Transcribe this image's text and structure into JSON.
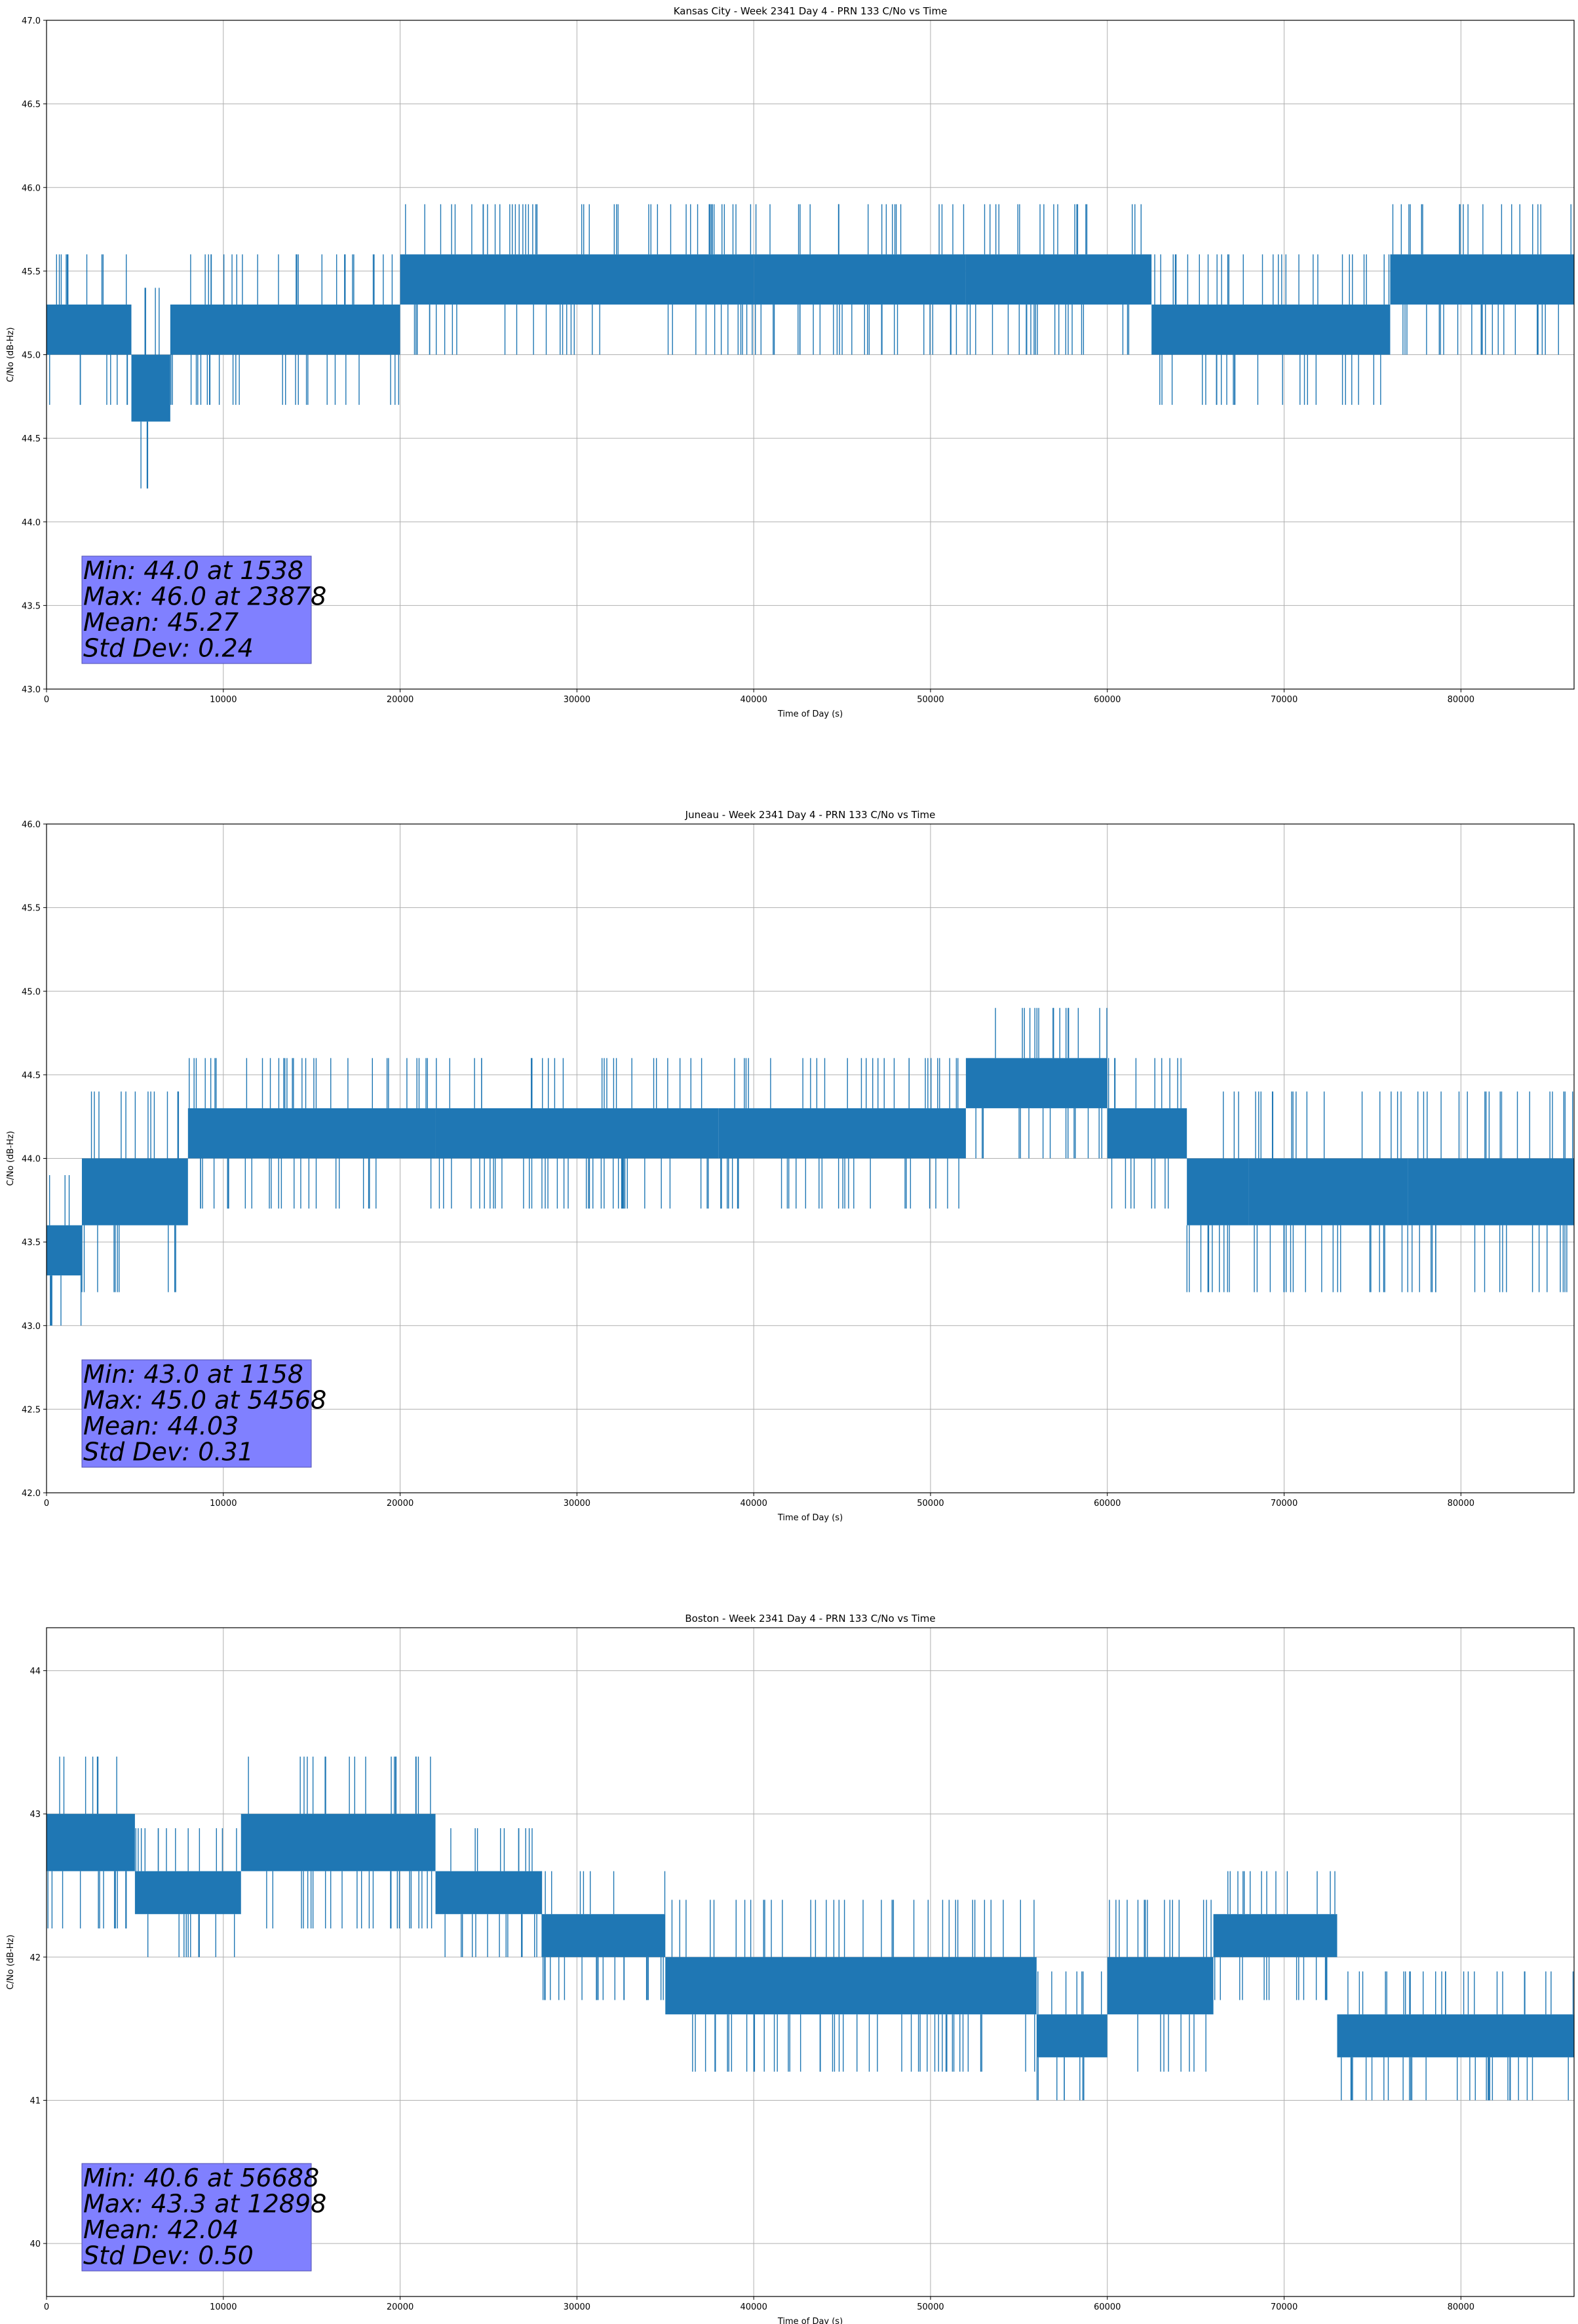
{
  "colors": {
    "series": "#1f77b4",
    "grid": "#b0b0b0",
    "statbox": "#8080ff"
  },
  "chart_data": [
    {
      "type": "line",
      "title": "Kansas City - Week 2341 Day 4 - PRN 133 C/No vs Time",
      "xlabel": "Time of Day (s)",
      "ylabel": "C/No (dB-Hz)",
      "xlim": [
        0,
        86400
      ],
      "ylim": [
        43.0,
        47.0
      ],
      "xticks": [
        0,
        10000,
        20000,
        30000,
        40000,
        50000,
        60000,
        70000,
        80000
      ],
      "xtick_labels": [
        "0",
        "10000",
        "20000",
        "30000",
        "40000",
        "50000",
        "60000",
        "70000",
        "80000"
      ],
      "yticks": [
        43.0,
        43.5,
        44.0,
        44.5,
        45.0,
        45.5,
        46.0,
        46.5,
        47.0
      ],
      "ytick_labels": [
        "43.0",
        "43.5",
        "44.0",
        "44.5",
        "45.0",
        "45.5",
        "46.0",
        "46.5",
        "47.0"
      ],
      "grid": true,
      "band_segments": [
        {
          "x0": 0,
          "x1": 4800,
          "lo": 45.0,
          "hi": 45.3
        },
        {
          "x0": 4800,
          "x1": 7000,
          "lo": 44.6,
          "hi": 45.0
        },
        {
          "x0": 7000,
          "x1": 20000,
          "lo": 45.0,
          "hi": 45.3
        },
        {
          "x0": 20000,
          "x1": 40000,
          "lo": 45.3,
          "hi": 45.6
        },
        {
          "x0": 40000,
          "x1": 52000,
          "lo": 45.3,
          "hi": 45.6
        },
        {
          "x0": 52000,
          "x1": 62500,
          "lo": 45.3,
          "hi": 45.6
        },
        {
          "x0": 62500,
          "x1": 76000,
          "lo": 45.0,
          "hi": 45.3
        },
        {
          "x0": 76000,
          "x1": 86400,
          "lo": 45.3,
          "hi": 45.6
        }
      ],
      "stats": {
        "min": "Min: 44.0 at 1538",
        "max": "Max: 46.0 at 23878",
        "mean": "Mean: 45.27",
        "std": "Std Dev: 0.24"
      }
    },
    {
      "type": "line",
      "title": "Juneau - Week 2341 Day 4 - PRN 133 C/No vs Time",
      "xlabel": "Time of Day (s)",
      "ylabel": "C/No (dB-Hz)",
      "xlim": [
        0,
        86400
      ],
      "ylim": [
        42.0,
        46.0
      ],
      "xticks": [
        0,
        10000,
        20000,
        30000,
        40000,
        50000,
        60000,
        70000,
        80000
      ],
      "xtick_labels": [
        "0",
        "10000",
        "20000",
        "30000",
        "40000",
        "50000",
        "60000",
        "70000",
        "80000"
      ],
      "yticks": [
        42.0,
        42.5,
        43.0,
        43.5,
        44.0,
        44.5,
        45.0,
        45.5,
        46.0
      ],
      "ytick_labels": [
        "42.0",
        "42.5",
        "43.0",
        "43.5",
        "44.0",
        "44.5",
        "45.0",
        "45.5",
        "46.0"
      ],
      "grid": true,
      "band_segments": [
        {
          "x0": 0,
          "x1": 2000,
          "lo": 43.3,
          "hi": 43.6
        },
        {
          "x0": 2000,
          "x1": 8000,
          "lo": 43.6,
          "hi": 44.0
        },
        {
          "x0": 8000,
          "x1": 22000,
          "lo": 44.0,
          "hi": 44.3
        },
        {
          "x0": 22000,
          "x1": 38000,
          "lo": 44.0,
          "hi": 44.3
        },
        {
          "x0": 38000,
          "x1": 52000,
          "lo": 44.0,
          "hi": 44.3
        },
        {
          "x0": 52000,
          "x1": 60000,
          "lo": 44.3,
          "hi": 44.6
        },
        {
          "x0": 60000,
          "x1": 64500,
          "lo": 44.0,
          "hi": 44.3
        },
        {
          "x0": 64500,
          "x1": 68000,
          "lo": 43.6,
          "hi": 44.0
        },
        {
          "x0": 68000,
          "x1": 77000,
          "lo": 43.6,
          "hi": 44.0
        },
        {
          "x0": 77000,
          "x1": 86400,
          "lo": 43.6,
          "hi": 44.0
        }
      ],
      "stats": {
        "min": "Min: 43.0 at 1158",
        "max": "Max: 45.0 at 54568",
        "mean": "Mean: 44.03",
        "std": "Std Dev: 0.31"
      }
    },
    {
      "type": "line",
      "title": "Boston - Week 2341 Day 4 - PRN 133 C/No vs Time",
      "xlabel": "Time of Day (s)",
      "ylabel": "C/No (dB-Hz)",
      "xlim": [
        0,
        86400
      ],
      "ylim": [
        39.63,
        44.3
      ],
      "xticks": [
        0,
        10000,
        20000,
        30000,
        40000,
        50000,
        60000,
        70000,
        80000
      ],
      "xtick_labels": [
        "0",
        "10000",
        "20000",
        "30000",
        "40000",
        "50000",
        "60000",
        "70000",
        "80000"
      ],
      "yticks": [
        40,
        41,
        42,
        43,
        44
      ],
      "ytick_labels": [
        "40",
        "41",
        "42",
        "43",
        "44"
      ],
      "grid": true,
      "band_segments": [
        {
          "x0": 0,
          "x1": 5000,
          "lo": 42.6,
          "hi": 43.0
        },
        {
          "x0": 5000,
          "x1": 11000,
          "lo": 42.3,
          "hi": 42.6
        },
        {
          "x0": 11000,
          "x1": 22000,
          "lo": 42.6,
          "hi": 43.0
        },
        {
          "x0": 22000,
          "x1": 28000,
          "lo": 42.3,
          "hi": 42.6
        },
        {
          "x0": 28000,
          "x1": 35000,
          "lo": 42.0,
          "hi": 42.3
        },
        {
          "x0": 35000,
          "x1": 56000,
          "lo": 41.6,
          "hi": 42.0
        },
        {
          "x0": 56000,
          "x1": 60000,
          "lo": 41.3,
          "hi": 41.6
        },
        {
          "x0": 60000,
          "x1": 66000,
          "lo": 41.6,
          "hi": 42.0
        },
        {
          "x0": 66000,
          "x1": 73000,
          "lo": 42.0,
          "hi": 42.3
        },
        {
          "x0": 73000,
          "x1": 86400,
          "lo": 41.3,
          "hi": 41.6
        }
      ],
      "stats": {
        "min": "Min: 40.6 at 56688",
        "max": "Max: 43.3 at 12898",
        "mean": "Mean: 42.04",
        "std": "Std Dev: 0.50"
      }
    }
  ]
}
